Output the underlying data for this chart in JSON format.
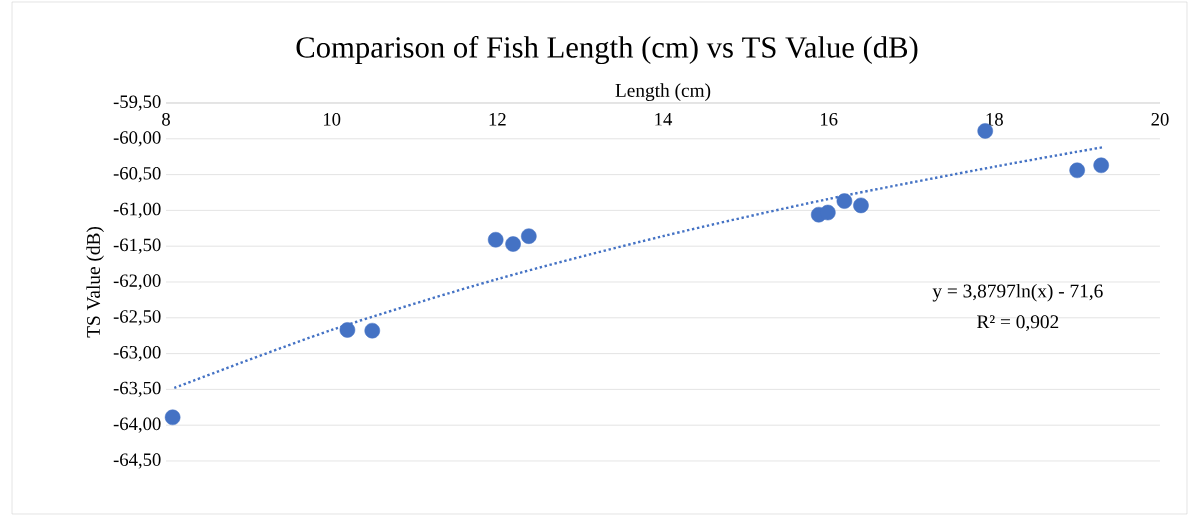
{
  "chart_data": {
    "type": "scatter",
    "title": "Comparison of Fish Length (cm) vs TS Value (dB)",
    "xlabel": "Length (cm)",
    "ylabel": "TS Value (dB)",
    "xlim": [
      8,
      20
    ],
    "xticks": [
      8,
      10,
      12,
      14,
      16,
      18,
      20
    ],
    "ylim": [
      -64.5,
      -59.5
    ],
    "yticks": [
      {
        "value": -59.5,
        "label": "-59,50"
      },
      {
        "value": -60,
        "label": "-60,00"
      },
      {
        "value": -60.5,
        "label": "-60,50"
      },
      {
        "value": -61,
        "label": "-61,00"
      },
      {
        "value": -61.5,
        "label": "-61,50"
      },
      {
        "value": -62,
        "label": "-62,00"
      },
      {
        "value": -62.5,
        "label": "-62,50"
      },
      {
        "value": -63,
        "label": "-63,00"
      },
      {
        "value": -63.5,
        "label": "-63,50"
      },
      {
        "value": -64,
        "label": "-64,00"
      },
      {
        "value": -64.5,
        "label": "-64,50"
      }
    ],
    "grid": "y",
    "series": [
      {
        "marker": "circle",
        "color": "#4472c4",
        "x": [
          8.08,
          10.19,
          10.49,
          11.98,
          12.19,
          12.38,
          15.88,
          15.99,
          16.19,
          16.39,
          17.89,
          19.0,
          19.29
        ],
        "values": [
          -63.89,
          -62.67,
          -62.68,
          -61.41,
          -61.47,
          -61.36,
          -61.06,
          -61.03,
          -60.87,
          -60.93,
          -59.89,
          -60.44,
          -60.37
        ]
      },
      {
        "type": "line",
        "marker": "none",
        "color": "#4472c4",
        "line_style": "dotted",
        "x": [
          8.1,
          10,
          12,
          14,
          16,
          18,
          19.3
        ],
        "values": [
          -63.48,
          -62.67,
          -61.96,
          -61.36,
          -60.84,
          -60.39,
          -60.12
        ]
      }
    ],
    "annotations": [
      "y = 3,8797ln(x) - 71,6",
      "R² = 0,902"
    ]
  }
}
